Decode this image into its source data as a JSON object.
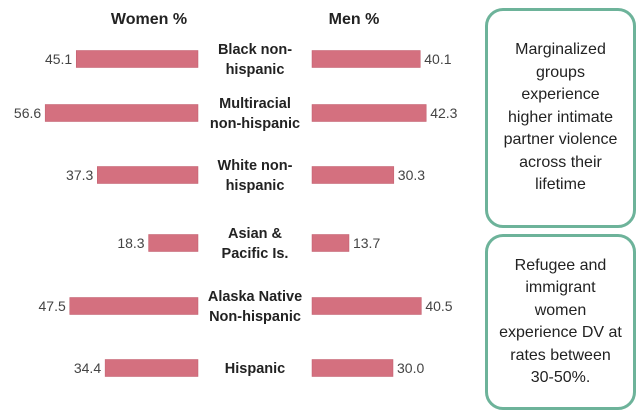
{
  "chart_data": {
    "type": "bar",
    "orientation": "horizontal-back-to-back",
    "left_header": "Women %",
    "right_header": "Men %",
    "categories": [
      "Black non-hispanic",
      "Multiracial non-hispanic",
      "White non-hispanic",
      "Asian & Pacific Is.",
      "Alaska Native Non-hispanic",
      "Hispanic"
    ],
    "category_lines": [
      [
        "Black non-",
        "hispanic"
      ],
      [
        "Multiracial",
        "non-hispanic"
      ],
      [
        "White non-",
        "hispanic"
      ],
      [
        "Asian &",
        "Pacific Is."
      ],
      [
        "Alaska Native",
        "Non-hispanic"
      ],
      [
        "Hispanic"
      ]
    ],
    "series": [
      {
        "values": [
          45.1,
          56.6,
          37.3,
          18.3,
          47.5,
          34.4
        ]
      },
      {
        "values": [
          40.1,
          42.3,
          30.3,
          13.7,
          40.5,
          30.0
        ]
      }
    ],
    "value_labels": [
      [
        "45.1",
        "56.6",
        "37.3",
        "18.3",
        "47.5",
        "34.4"
      ],
      [
        "40.1",
        "42.3",
        "30.3",
        "13.7",
        "40.5",
        "30.0"
      ]
    ],
    "bar_color": "#d4707f",
    "box_border_color": "#6db39a"
  },
  "notes": [
    {
      "lines": [
        "Marginalized",
        "groups",
        "experience",
        "higher intimate",
        "partner violence",
        "across their",
        "lifetime"
      ]
    },
    {
      "lines": [
        "Refugee and",
        "immigrant",
        "women",
        "experience DV at",
        "rates between",
        "30-50%."
      ]
    }
  ]
}
